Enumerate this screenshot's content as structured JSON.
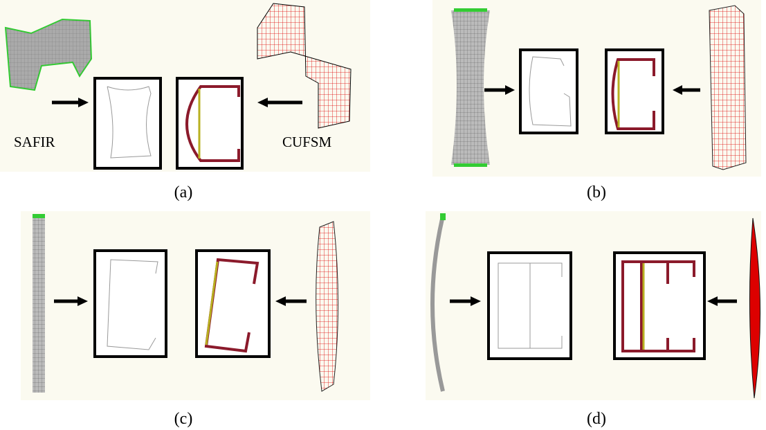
{
  "panels": {
    "a": {
      "caption": "(a)",
      "left_label": "SAFIR",
      "right_label": "CUFSM"
    },
    "b": {
      "caption": "(b)"
    },
    "c": {
      "caption": "(c)"
    },
    "d": {
      "caption": "(d)"
    }
  }
}
